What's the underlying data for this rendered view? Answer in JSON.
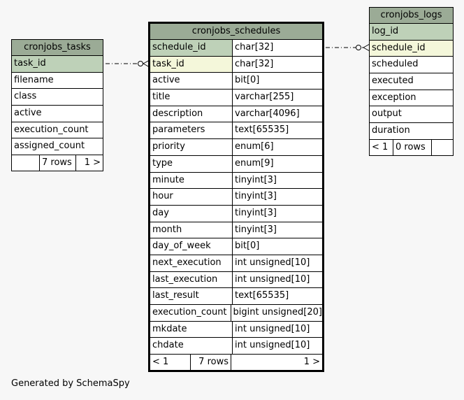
{
  "tables": {
    "tasks": {
      "title": "cronjobs_tasks",
      "columns": [
        {
          "name": "task_id",
          "key": "pk"
        },
        {
          "name": "filename",
          "key": ""
        },
        {
          "name": "class",
          "key": ""
        },
        {
          "name": "active",
          "key": ""
        },
        {
          "name": "execution_count",
          "key": ""
        },
        {
          "name": "assigned_count",
          "key": ""
        }
      ],
      "footer": {
        "parents": "",
        "rows": "7 rows",
        "children": "1 >"
      }
    },
    "schedules": {
      "title": "cronjobs_schedules",
      "columns": [
        {
          "name": "schedule_id",
          "type": "char[32]",
          "key": "pk"
        },
        {
          "name": "task_id",
          "type": "char[32]",
          "key": "fk"
        },
        {
          "name": "active",
          "type": "bit[0]",
          "key": ""
        },
        {
          "name": "title",
          "type": "varchar[255]",
          "key": ""
        },
        {
          "name": "description",
          "type": "varchar[4096]",
          "key": ""
        },
        {
          "name": "parameters",
          "type": "text[65535]",
          "key": ""
        },
        {
          "name": "priority",
          "type": "enum[6]",
          "key": ""
        },
        {
          "name": "type",
          "type": "enum[9]",
          "key": ""
        },
        {
          "name": "minute",
          "type": "tinyint[3]",
          "key": ""
        },
        {
          "name": "hour",
          "type": "tinyint[3]",
          "key": ""
        },
        {
          "name": "day",
          "type": "tinyint[3]",
          "key": ""
        },
        {
          "name": "month",
          "type": "tinyint[3]",
          "key": ""
        },
        {
          "name": "day_of_week",
          "type": "bit[0]",
          "key": ""
        },
        {
          "name": "next_execution",
          "type": "int unsigned[10]",
          "key": ""
        },
        {
          "name": "last_execution",
          "type": "int unsigned[10]",
          "key": ""
        },
        {
          "name": "last_result",
          "type": "text[65535]",
          "key": ""
        },
        {
          "name": "execution_count",
          "type": "bigint unsigned[20]",
          "key": ""
        },
        {
          "name": "mkdate",
          "type": "int unsigned[10]",
          "key": ""
        },
        {
          "name": "chdate",
          "type": "int unsigned[10]",
          "key": ""
        }
      ],
      "footer": {
        "parents": "< 1",
        "rows": "7 rows",
        "children": "1 >"
      }
    },
    "logs": {
      "title": "cronjobs_logs",
      "columns": [
        {
          "name": "log_id",
          "key": "pk"
        },
        {
          "name": "schedule_id",
          "key": "fk"
        },
        {
          "name": "scheduled",
          "key": ""
        },
        {
          "name": "executed",
          "key": ""
        },
        {
          "name": "exception",
          "key": ""
        },
        {
          "name": "output",
          "key": ""
        },
        {
          "name": "duration",
          "key": ""
        }
      ],
      "footer": {
        "parents": "< 1",
        "rows": "0 rows",
        "children": ""
      }
    }
  },
  "caption": "Generated by SchemaSpy"
}
